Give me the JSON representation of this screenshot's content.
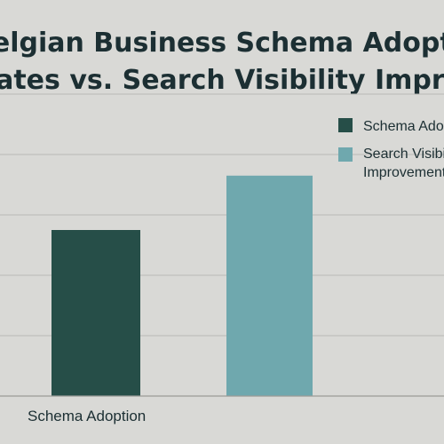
{
  "chart_data": {
    "type": "bar",
    "title_lines": [
      "Belgian Business Schema Adoption",
      "Rates vs. Search Visibility Improvement"
    ],
    "categories": [
      "Schema Adoption"
    ],
    "series": [
      {
        "name": "Schema Adoption",
        "values": [
          55
        ],
        "color": "#264e48"
      },
      {
        "name": "Search Visibility Improvement",
        "values": [
          73
        ],
        "color": "#6fa8ae"
      }
    ],
    "legend_labels": [
      [
        "Schema Adoption"
      ],
      [
        "Search Visibility",
        "Improvement"
      ]
    ],
    "ylim": [
      0,
      100
    ],
    "grid": true,
    "legend_position": "top-right",
    "grid_color": "#b9b9b6",
    "axis_color": "#9a9a97"
  }
}
